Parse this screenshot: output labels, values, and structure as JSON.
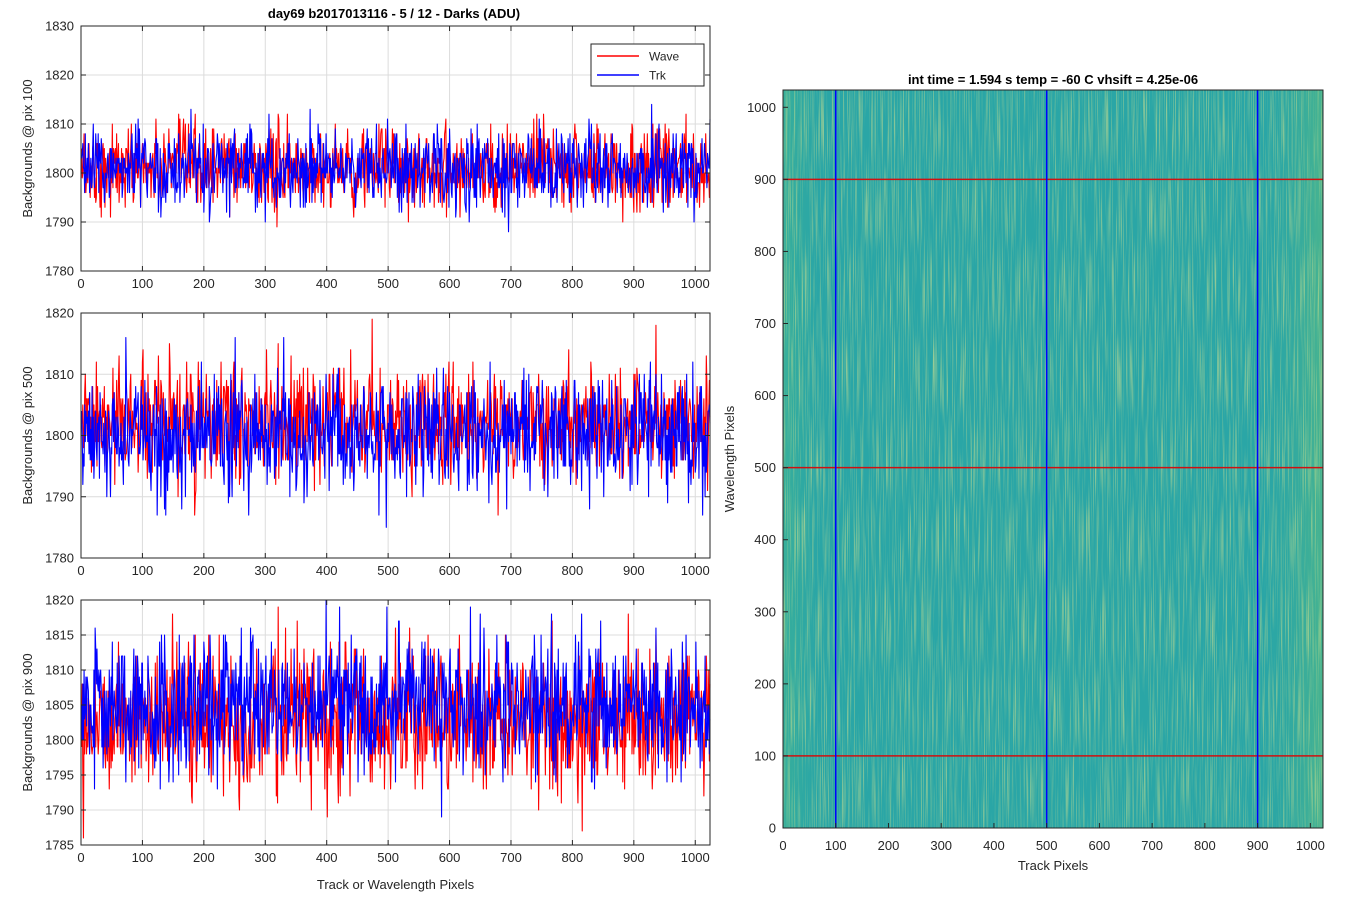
{
  "figure": {
    "suptitle": "day69 b2017013116 - 5 / 12 - Darks (ADU)",
    "colors": {
      "wave": "#ff0000",
      "trk": "#0000ff",
      "grid": "#dcdcdc",
      "axis": "#262626"
    }
  },
  "chart_data": [
    {
      "type": "line",
      "title": "day69 b2017013116 - 5 / 12 - Darks (ADU)",
      "xlabel": "",
      "ylabel": "Backgrounds @ pix 100",
      "xlim": [
        0,
        1024
      ],
      "ylim": [
        1780,
        1830
      ],
      "xticks": [
        0,
        100,
        200,
        300,
        400,
        500,
        600,
        700,
        800,
        900,
        1000
      ],
      "yticks": [
        1780,
        1790,
        1800,
        1810,
        1820,
        1830
      ],
      "grid": true,
      "legend": {
        "position": "top-right",
        "entries": [
          "Wave",
          "Trk"
        ]
      },
      "series": [
        {
          "name": "Wave",
          "color": "#ff0000",
          "noise": {
            "mean": 1801,
            "sigma": 4.2,
            "min": 1786,
            "max": 1821,
            "n": 1024
          }
        },
        {
          "name": "Trk",
          "color": "#0000ff",
          "noise": {
            "mean": 1801,
            "sigma": 4.2,
            "min": 1785,
            "max": 1818,
            "n": 1024
          }
        }
      ]
    },
    {
      "type": "line",
      "title": "",
      "xlabel": "",
      "ylabel": "Backgrounds @ pix 500",
      "xlim": [
        0,
        1024
      ],
      "ylim": [
        1780,
        1820
      ],
      "xticks": [
        0,
        100,
        200,
        300,
        400,
        500,
        600,
        700,
        800,
        900,
        1000
      ],
      "yticks": [
        1780,
        1790,
        1800,
        1810,
        1820
      ],
      "grid": true,
      "series": [
        {
          "name": "Wave",
          "color": "#ff0000",
          "noise": {
            "mean": 1802,
            "sigma": 4.5,
            "min": 1783,
            "max": 1820,
            "n": 1024
          }
        },
        {
          "name": "Trk",
          "color": "#0000ff",
          "noise": {
            "mean": 1800,
            "sigma": 4.8,
            "min": 1782,
            "max": 1819,
            "n": 1024
          }
        }
      ]
    },
    {
      "type": "line",
      "title": "",
      "xlabel": "Track or Wavelength Pixels",
      "ylabel": "Backgrounds @ pix 900",
      "xlim": [
        0,
        1024
      ],
      "ylim": [
        1785,
        1820
      ],
      "xticks": [
        0,
        100,
        200,
        300,
        400,
        500,
        600,
        700,
        800,
        900,
        1000
      ],
      "yticks": [
        1785,
        1790,
        1795,
        1800,
        1805,
        1810,
        1815,
        1820
      ],
      "grid": true,
      "series": [
        {
          "name": "Wave",
          "color": "#ff0000",
          "noise": {
            "mean": 1803,
            "sigma": 5.0,
            "min": 1786,
            "max": 1820,
            "n": 1024
          }
        },
        {
          "name": "Trk",
          "color": "#0000ff",
          "noise": {
            "mean": 1805,
            "sigma": 5.0,
            "min": 1786,
            "max": 1820,
            "n": 1024
          }
        }
      ]
    },
    {
      "type": "heatmap",
      "title": "int time = 1.594 s   temp = -60 C   vhsift = 4.25e-06",
      "xlabel": "Track Pixels",
      "ylabel": "Wavelength Pixels",
      "xlim": [
        0,
        1024
      ],
      "ylim": [
        0,
        1024
      ],
      "xticks": [
        0,
        100,
        200,
        300,
        400,
        500,
        600,
        700,
        800,
        900,
        1000
      ],
      "yticks": [
        0,
        100,
        200,
        300,
        400,
        500,
        600,
        700,
        800,
        900,
        1000
      ],
      "colormap": "parula",
      "base_color": "#2aa6a6",
      "vertical_markers": [
        100,
        500,
        900
      ],
      "vertical_marker_color": "#0000ff",
      "horizontal_markers": [
        100,
        500,
        900
      ],
      "horizontal_marker_color": "#d01010"
    }
  ]
}
